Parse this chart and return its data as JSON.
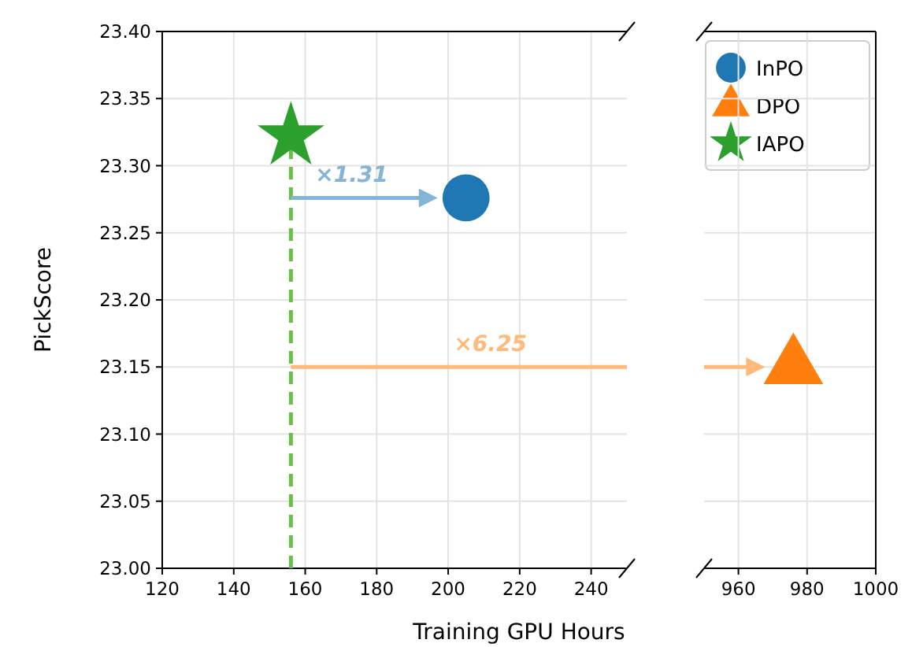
{
  "chart_data": [
    {
      "type": "scatter",
      "xlabel": "Training GPU Hours",
      "ylabel": "PickScore",
      "xlim": [
        120,
        250
      ],
      "xticks": [
        120,
        140,
        160,
        180,
        200,
        220,
        240
      ],
      "ylim": [
        23.0,
        23.4
      ],
      "yticks": [
        {
          "value": 23.0,
          "label": "23.00"
        },
        {
          "value": 23.05,
          "label": "23.05"
        },
        {
          "value": 23.1,
          "label": "23.10"
        },
        {
          "value": 23.15,
          "label": "23.15"
        },
        {
          "value": 23.2,
          "label": "23.20"
        },
        {
          "value": 23.25,
          "label": "23.25"
        },
        {
          "value": 23.3,
          "label": "23.30"
        },
        {
          "value": 23.35,
          "label": "23.35"
        },
        {
          "value": 23.4,
          "label": "23.40"
        }
      ],
      "grid": true,
      "series": [
        {
          "type": "line",
          "color": "#6abf47",
          "x": [
            156,
            156
          ],
          "values": [
            23.0,
            23.322
          ],
          "line_style": "dashed"
        },
        {
          "type": "line",
          "color": "#ffb97a",
          "x": [
            156,
            250
          ],
          "values": [
            23.15,
            23.15
          ],
          "line_style": "solid"
        },
        {
          "name": "InPO",
          "color": "#1f77b4",
          "x": [
            205
          ],
          "values": [
            23.276
          ],
          "marker": "circle"
        },
        {
          "name": "DPO",
          "color": "#ff7f0e",
          "x": [
            null
          ],
          "values": [
            null
          ],
          "marker": "triangle"
        },
        {
          "name": "IAPO",
          "color": "#2ca02c",
          "x": [
            156
          ],
          "values": [
            23.322
          ],
          "marker": "star"
        }
      ],
      "legend": "top right",
      "annotations": [
        "×1.31",
        "×6.25"
      ]
    },
    {
      "type": "scatter",
      "xlim": [
        950,
        1000
      ],
      "xticks": [
        960,
        980,
        1000
      ],
      "ylim": [
        23.0,
        23.4
      ],
      "yticks": [
        23.0,
        23.05,
        23.1,
        23.15,
        23.2,
        23.25,
        23.3,
        23.35,
        23.4
      ],
      "grid": true,
      "tick_labels": "x",
      "series": [
        {
          "color": "#ff7f0e",
          "x": [
            976
          ],
          "values": [
            23.15
          ],
          "marker": "triangle"
        }
      ]
    }
  ]
}
